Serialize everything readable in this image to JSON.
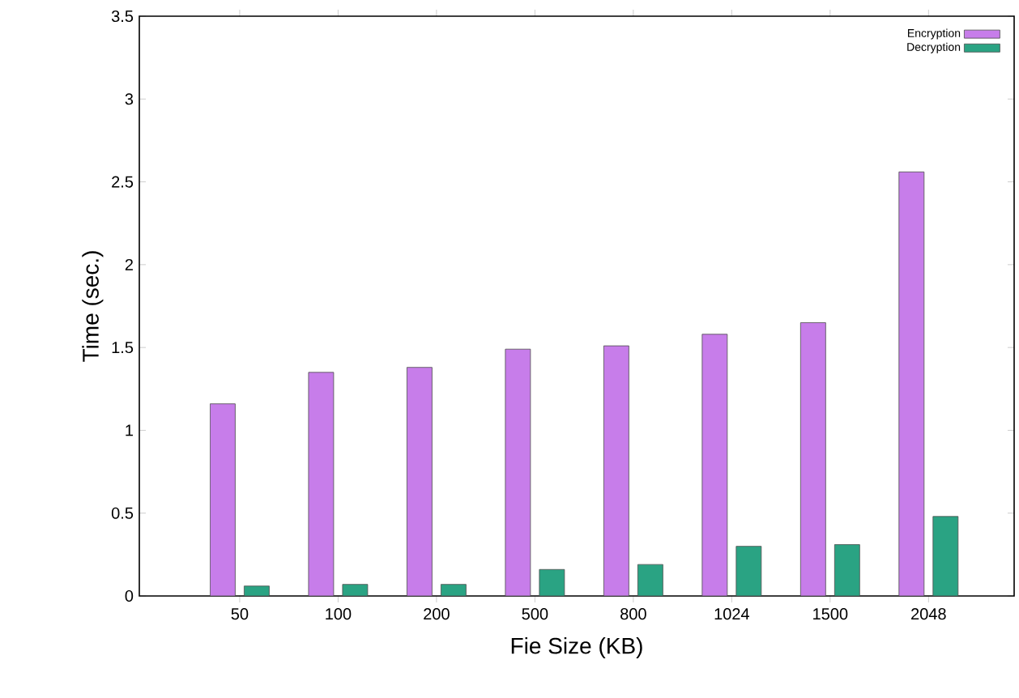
{
  "chart_data": {
    "type": "bar",
    "xlabel": "Fie Size (KB)",
    "ylabel": "Time (sec.)",
    "categories": [
      "50",
      "100",
      "200",
      "500",
      "800",
      "1024",
      "1500",
      "2048"
    ],
    "series": [
      {
        "name": "Encryption",
        "color": "#c77dea",
        "values": [
          1.16,
          1.35,
          1.38,
          1.49,
          1.51,
          1.58,
          1.65,
          2.56
        ]
      },
      {
        "name": "Decryption",
        "color": "#2aa383",
        "values": [
          0.06,
          0.07,
          0.07,
          0.16,
          0.19,
          0.3,
          0.31,
          0.48
        ]
      }
    ],
    "ylim": [
      0,
      3.5
    ],
    "yticks": [
      0,
      0.5,
      1,
      1.5,
      2,
      2.5,
      3,
      3.5
    ],
    "grid": false,
    "legend": "top right"
  }
}
